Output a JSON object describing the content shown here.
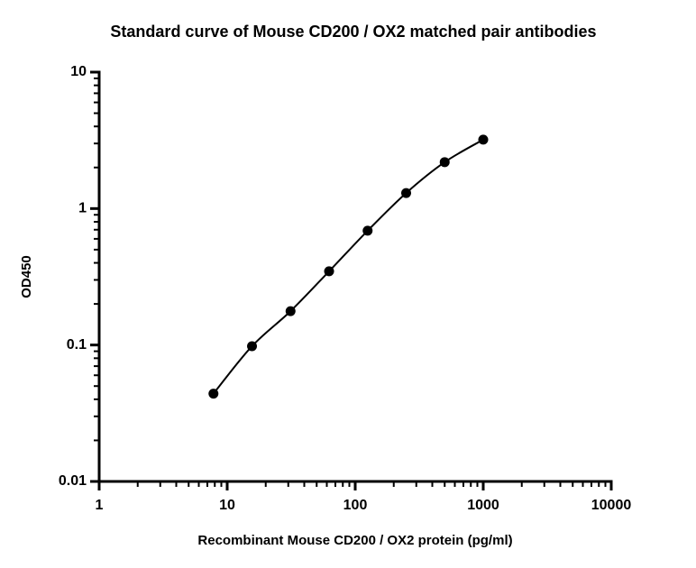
{
  "chart_data": {
    "type": "scatter",
    "title": "Standard curve of Mouse CD200 / OX2 matched pair antibodies",
    "x_label": "Recombinant Mouse CD200 / OX2 protein (pg/ml)",
    "y_label": "OD450",
    "x": [
      7.8125,
      15.625,
      31.25,
      62.5,
      125,
      250,
      500,
      1000
    ],
    "values": [
      0.044,
      0.098,
      0.177,
      0.347,
      0.688,
      1.3,
      2.19,
      3.2
    ],
    "color": "#000000",
    "fit_line": true,
    "xscale": "log",
    "yscale": "log",
    "xlim": [
      1,
      10000
    ],
    "xticks": [
      1,
      10,
      100,
      1000,
      10000
    ],
    "ylim": [
      0.01,
      10
    ],
    "yticks": [
      0.01,
      0.1,
      1,
      10
    ]
  }
}
